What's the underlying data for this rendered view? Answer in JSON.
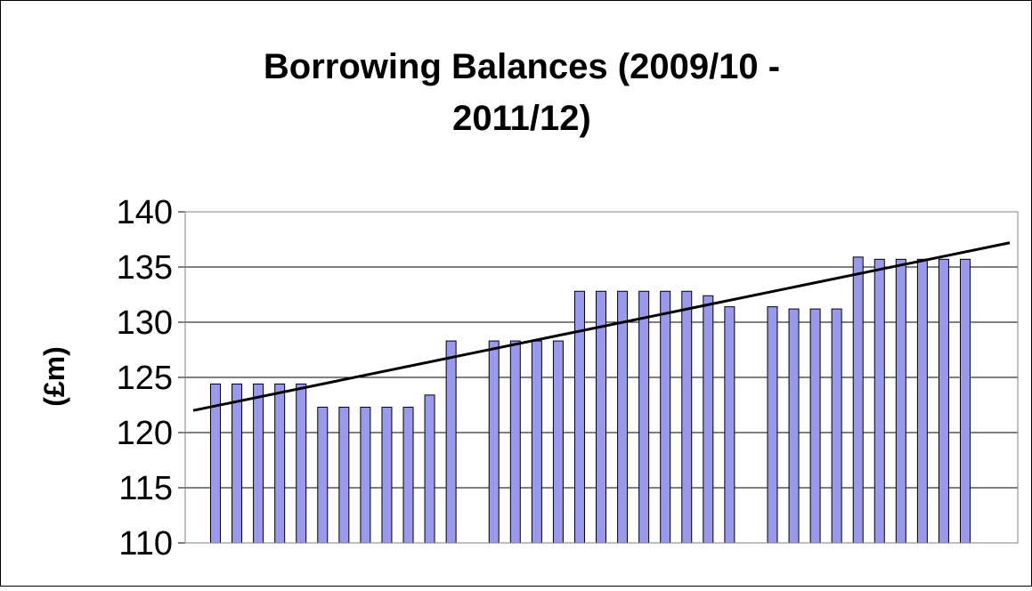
{
  "chart_data": {
    "type": "bar",
    "title": "Borrowing Balances (2009/10 - 2011/12)",
    "title_lines": [
      "Borrowing Balances (2009/10 -",
      "2011/12)"
    ],
    "ylabel": "(£m)",
    "xlabel": "",
    "ylim": [
      110,
      140
    ],
    "yticks": [
      "110",
      "115",
      "120",
      "125",
      "130",
      "135",
      "140"
    ],
    "grid": true,
    "legend": "none",
    "bar_color": "#9999ee",
    "bar_edge_color": "#000000",
    "trendline_color": "#000000",
    "values": [
      124.4,
      124.4,
      124.4,
      124.4,
      124.4,
      122.3,
      122.3,
      122.3,
      122.3,
      122.3,
      123.4,
      128.3,
      null,
      128.3,
      128.3,
      128.3,
      128.3,
      132.8,
      132.8,
      132.8,
      132.8,
      132.8,
      132.8,
      132.4,
      131.4,
      null,
      131.4,
      131.2,
      131.2,
      131.2,
      135.9,
      135.7,
      135.7,
      135.7,
      135.7,
      135.7
    ],
    "trendline": {
      "start": 122.0,
      "end": 137.2
    }
  }
}
